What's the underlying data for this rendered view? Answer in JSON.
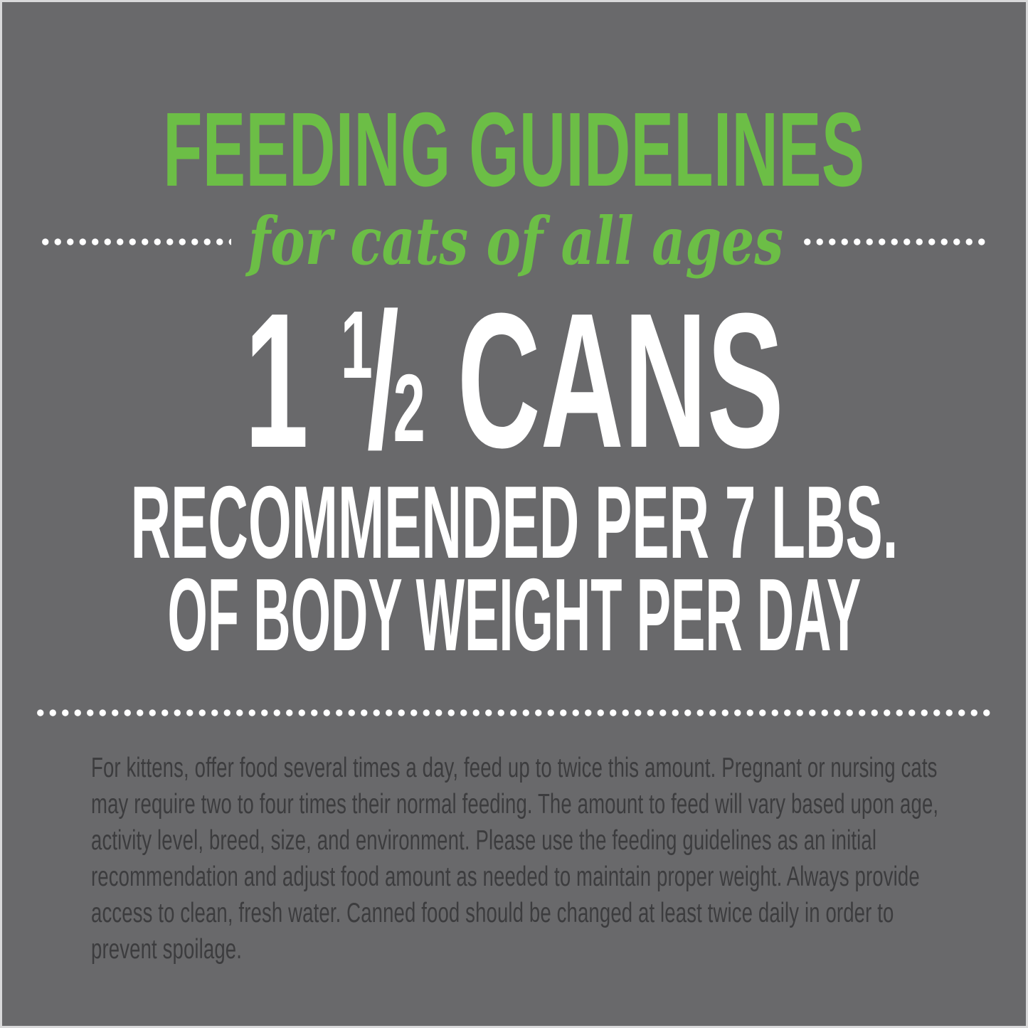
{
  "colors": {
    "background": "#69696B",
    "accent_green": "#6CBE46",
    "heading_white": "#FFFFFF",
    "body_text": "#3C3C3E",
    "border_white": "#EDEDED"
  },
  "header": {
    "title": "FEEDING GUIDELINES",
    "subtitle": "for cats of all ages"
  },
  "serving": {
    "whole_number": "1",
    "fraction_numerator": "1",
    "fraction_slash": "/",
    "fraction_denominator": "2",
    "unit": "CANS",
    "detail_line_1": "RECOMMENDED PER 7 LBS.",
    "detail_line_2": "OF BODY WEIGHT PER DAY"
  },
  "notes": {
    "paragraph": "For kittens, offer food several times a day, feed up to twice this amount. Pregnant or nursing cats may require two to four times their normal feeding. The amount to feed will vary based upon age, activity level, breed, size, and environment. Please use the feeding guidelines as an initial recommendation and adjust food amount as needed to maintain proper weight. Always provide access to clean, fresh water. Canned food should be changed at least twice daily in order to prevent spoilage."
  }
}
